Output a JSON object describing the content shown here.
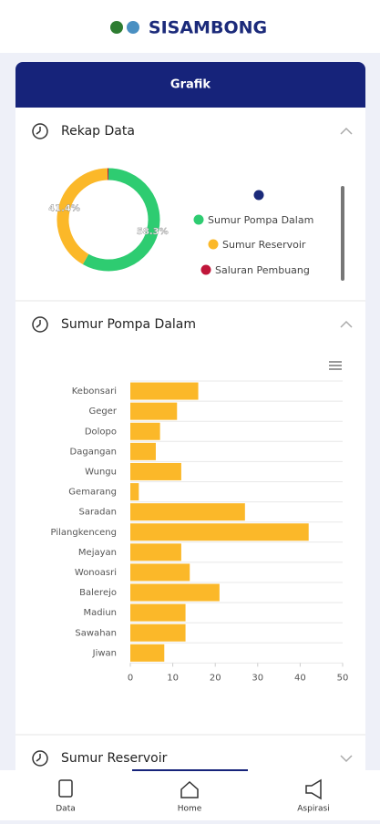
{
  "app_name": "SISAMBONG",
  "card_title": "Grafik",
  "sections": [
    "Rekap Data",
    "Sumur Pompa Dalam",
    "Sumur Reservoir"
  ],
  "nav": [
    "Data",
    "Home",
    "Aspirasi"
  ],
  "chart_data": [
    {
      "type": "pie",
      "categories": [
        null,
        "Sumur Pompa Dalam",
        "Sumur Reservoir",
        "Saluran Pembuang"
      ],
      "values": [
        0,
        58.3,
        41.4,
        0.3
      ],
      "value_labels": [
        null,
        "58.3%",
        "41.4%",
        null
      ],
      "colors": [
        "#1b2a7a",
        "#2ecc71",
        "#fbb829",
        "#c0163a"
      ],
      "legend": "right"
    },
    {
      "type": "bar",
      "orientation": "horizontal",
      "categories": [
        "Kebonsari",
        "Geger",
        "Dolopo",
        "Dagangan",
        "Wungu",
        "Gemarang",
        "Saradan",
        "Pilangkenceng",
        "Mejayan",
        "Wonoasri",
        "Balerejo",
        "Madiun",
        "Sawahan",
        "Jiwan"
      ],
      "values": [
        16,
        11,
        7,
        6,
        12,
        2,
        27,
        42,
        12,
        14,
        21,
        13,
        13,
        8
      ],
      "color": "#fbb829",
      "xlim": [
        0,
        50
      ],
      "xticks": [
        0,
        10,
        20,
        30,
        40,
        50
      ]
    }
  ]
}
